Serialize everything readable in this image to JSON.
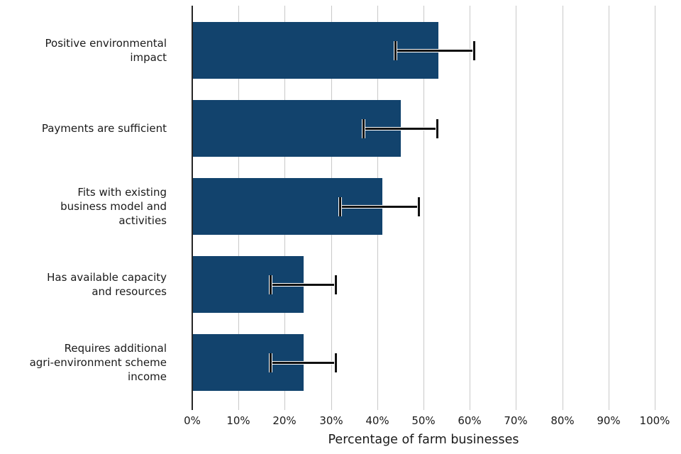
{
  "chart_data": {
    "type": "bar",
    "orientation": "horizontal",
    "title": "",
    "xlabel": "Percentage of farm businesses",
    "ylabel": "",
    "xlim": [
      0,
      100
    ],
    "grid": "vertical-gridlines",
    "legend": "none",
    "bar_color": "#12436D",
    "error_bar_color": "#111111",
    "error_bar_halo_color": "#ffffff",
    "gridline_color": "#c9c9c9",
    "spine_color": "#262626",
    "x_ticks": [
      {
        "value": 0,
        "label": "0%"
      },
      {
        "value": 10,
        "label": "10%"
      },
      {
        "value": 20,
        "label": "20%"
      },
      {
        "value": 30,
        "label": "30%"
      },
      {
        "value": 40,
        "label": "40%"
      },
      {
        "value": 50,
        "label": "50%"
      },
      {
        "value": 60,
        "label": "60%"
      },
      {
        "value": 70,
        "label": "70%"
      },
      {
        "value": 80,
        "label": "80%"
      },
      {
        "value": 90,
        "label": "90%"
      },
      {
        "value": 100,
        "label": "100%"
      }
    ],
    "series": [
      {
        "category": "Positive environmental impact",
        "label_lines": [
          "Positive environmental",
          "impact"
        ],
        "value": 53,
        "ci_low": 44,
        "ci_high": 61
      },
      {
        "category": "Payments are sufficient",
        "label_lines": [
          "Payments are sufficient"
        ],
        "value": 45,
        "ci_low": 37,
        "ci_high": 53
      },
      {
        "category": "Fits with existing business model and activities",
        "label_lines": [
          "Fits with existing",
          "business model and",
          "activities"
        ],
        "value": 41,
        "ci_low": 32,
        "ci_high": 49
      },
      {
        "category": "Has available capacity and resources",
        "label_lines": [
          "Has available capacity",
          "and resources"
        ],
        "value": 24,
        "ci_low": 17,
        "ci_high": 31
      },
      {
        "category": "Requires additional agri-environment scheme income",
        "label_lines": [
          "Requires additional",
          "agri-environment scheme",
          "income"
        ],
        "value": 24,
        "ci_low": 17,
        "ci_high": 31
      }
    ]
  }
}
